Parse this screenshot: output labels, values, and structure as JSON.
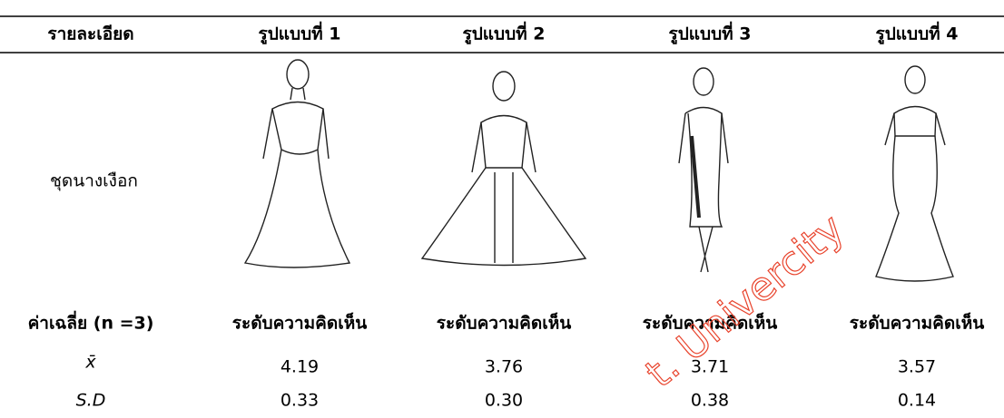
{
  "table": {
    "header": [
      "รายละเอียด",
      "รูปแบบที่ 1",
      "รูปแบบที่ 2",
      "รูปแบบที่ 3",
      "รูปแบบที่ 4"
    ],
    "image_row_label": "ชุดนางเงือก",
    "subheader": [
      "ค่าเฉลี่ย (n =3)",
      "ระดับความคิดเห็น",
      "ระดับความคิดเห็น",
      "ระดับความคิดเห็น",
      "ระดับความคิดเห็น"
    ],
    "rows": [
      [
        "x̄",
        "4.19",
        "3.76",
        "3.71",
        "3.57"
      ],
      [
        "S.D",
        "0.33",
        "0.30",
        "0.38",
        "0.14"
      ]
    ]
  },
  "watermark": "t. Univercity"
}
